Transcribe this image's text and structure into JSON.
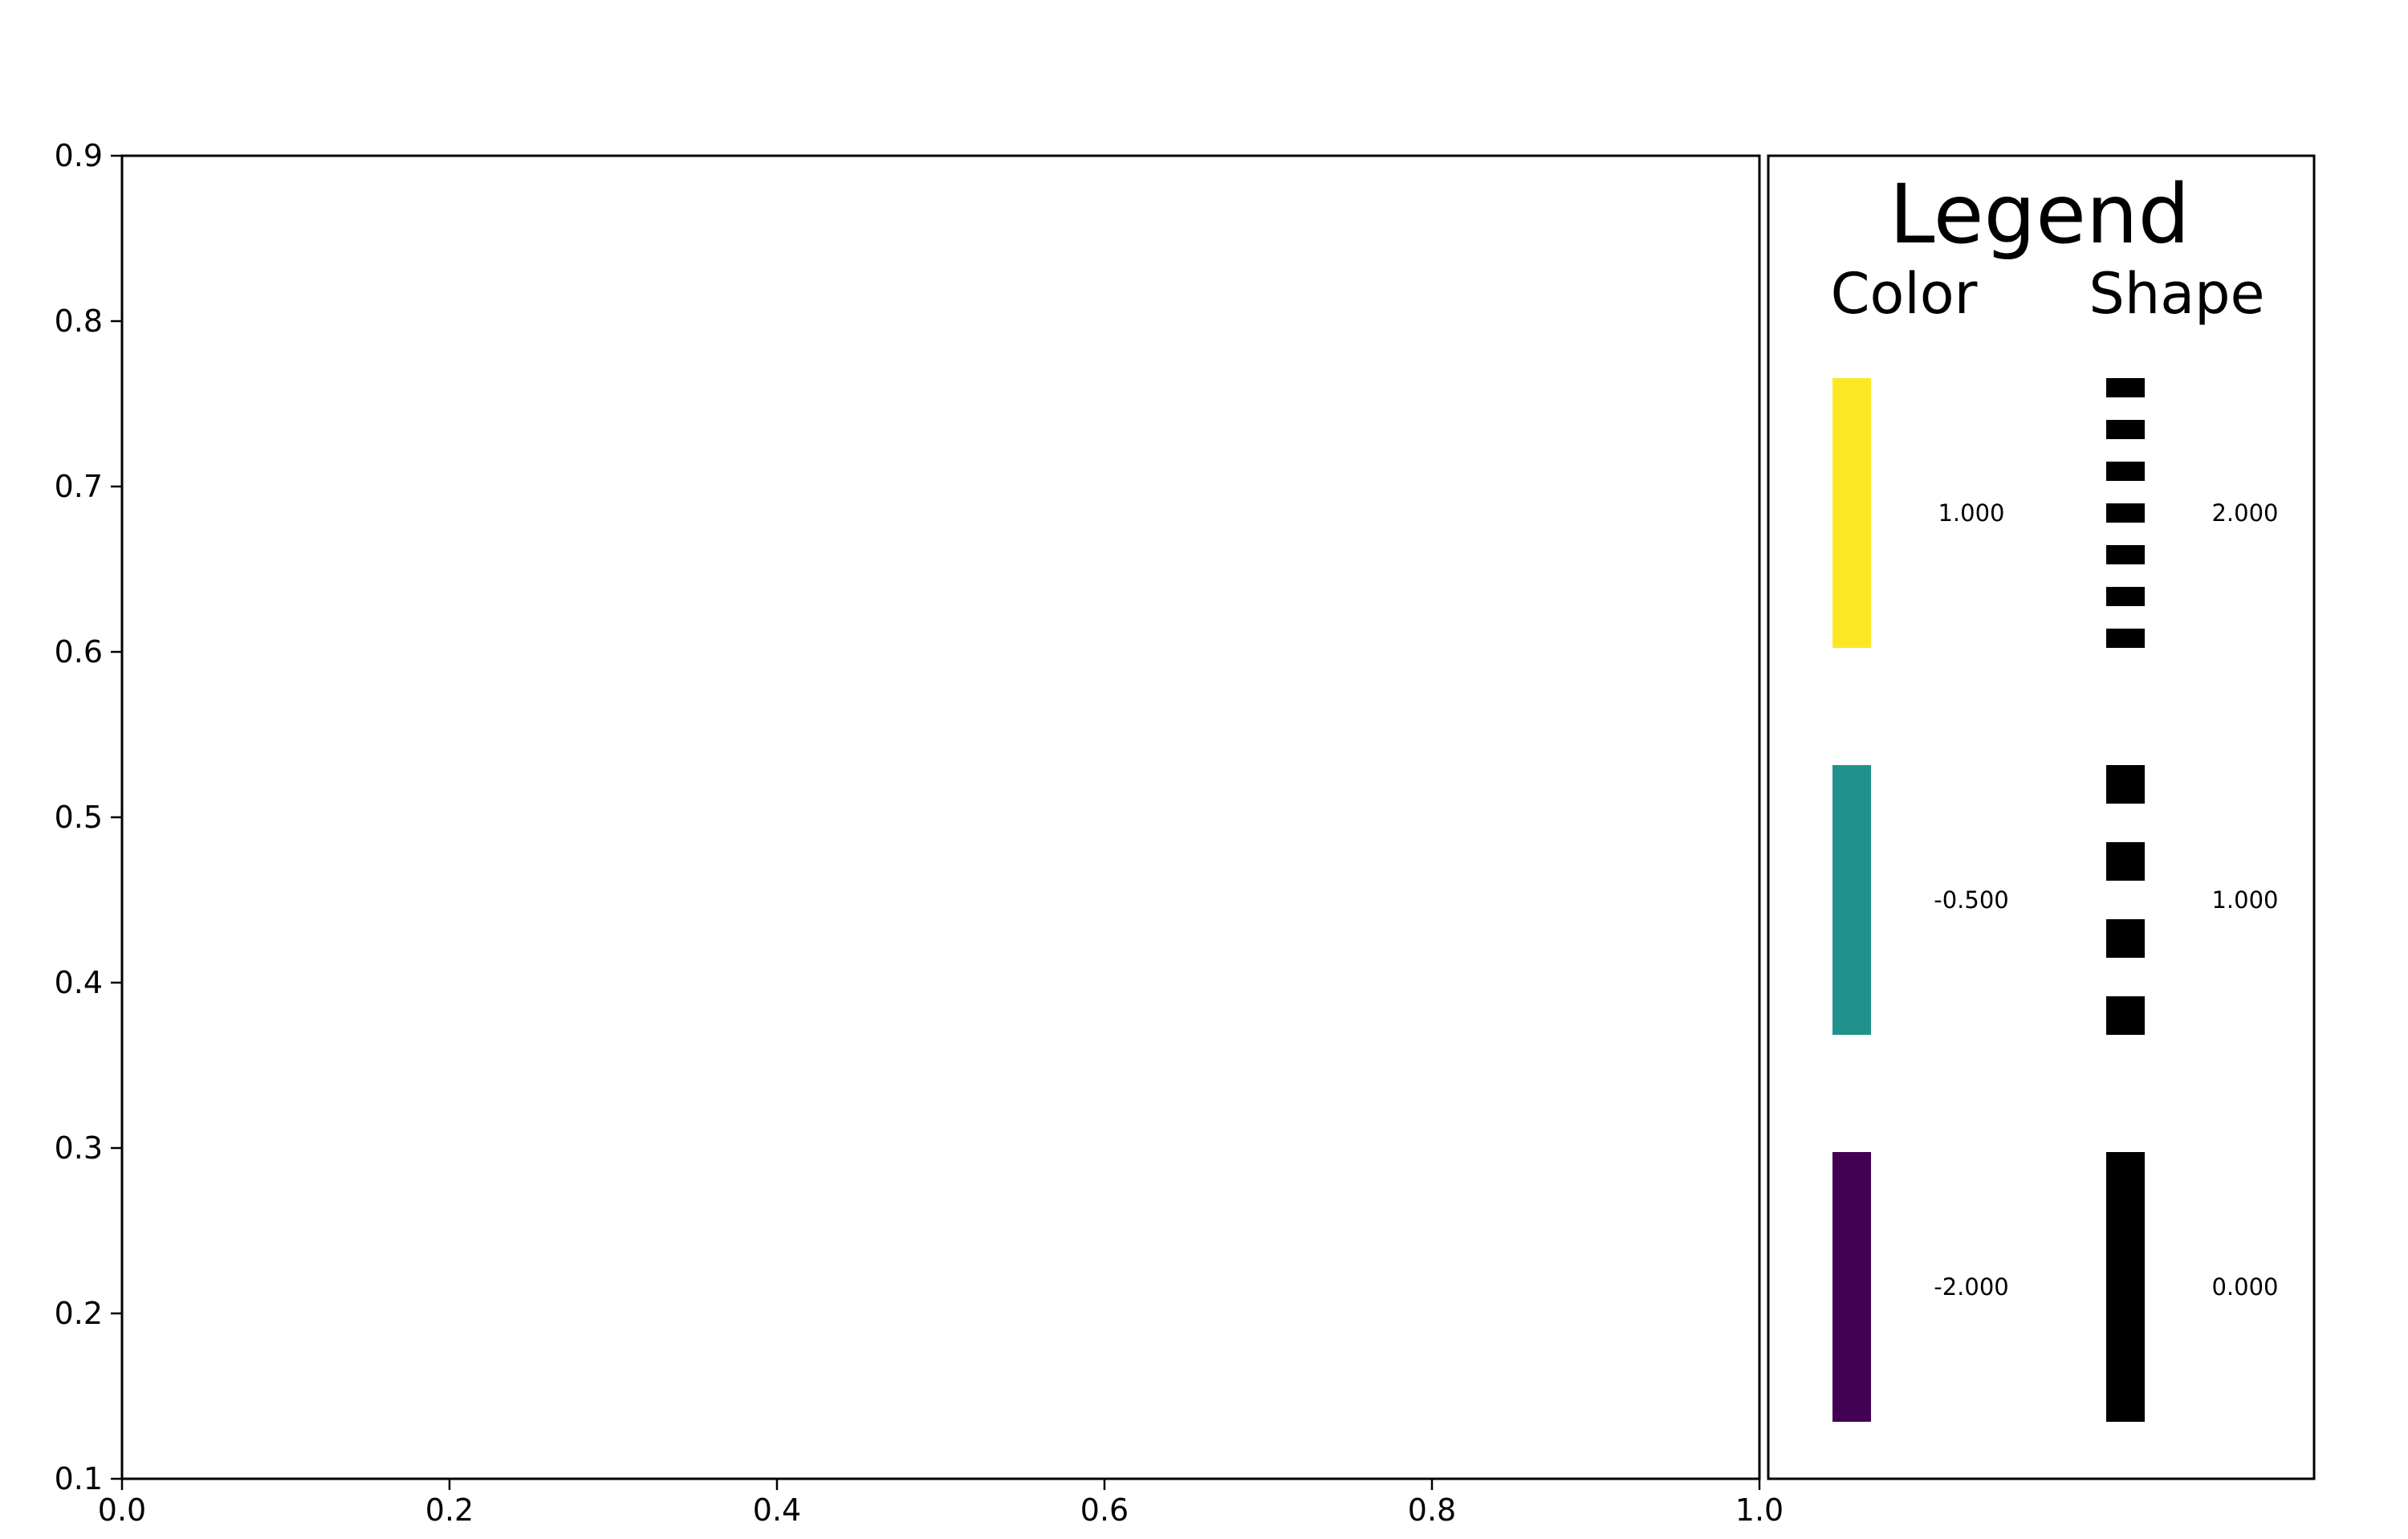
{
  "chart_data": {
    "type": "line",
    "title": "",
    "xlabel": "",
    "ylabel": "",
    "xlim": [
      0.0,
      1.0
    ],
    "ylim": [
      0.1,
      0.9
    ],
    "x_ticks": [
      "0.0",
      "0.2",
      "0.4",
      "0.6",
      "0.8",
      "1.0"
    ],
    "y_ticks": [
      "0.1",
      "0.2",
      "0.3",
      "0.4",
      "0.5",
      "0.6",
      "0.7",
      "0.8",
      "0.9"
    ],
    "grid": false,
    "series": [],
    "legend": {
      "title": "Legend",
      "placement": "right",
      "color_header": "Color",
      "shape_header": "Shape",
      "color_entries": [
        {
          "label": "1.000",
          "color": "#fde725"
        },
        {
          "label": "-0.500",
          "color": "#21918c"
        },
        {
          "label": "-2.000",
          "color": "#440154"
        }
      ],
      "shape_entries": [
        {
          "label": "2.000",
          "pattern": "fine-dashes",
          "color": "#000000"
        },
        {
          "label": "1.000",
          "pattern": "coarse-dashes",
          "color": "#000000"
        },
        {
          "label": "0.000",
          "pattern": "solid",
          "color": "#000000"
        }
      ]
    }
  }
}
